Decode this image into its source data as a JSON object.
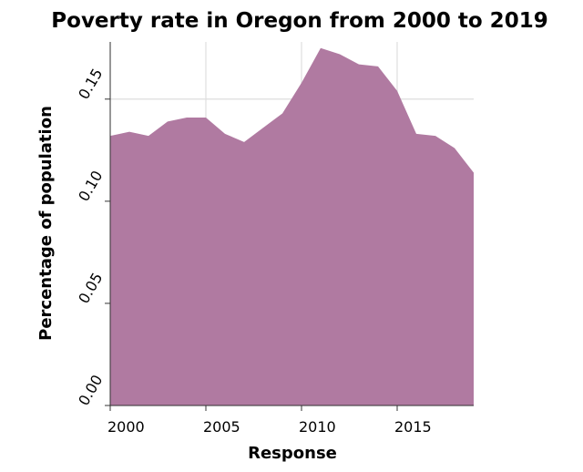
{
  "chart_data": {
    "type": "area",
    "title": "Poverty rate in Oregon from 2000 to 2019",
    "xlabel": "Response",
    "ylabel": "Percentage of population",
    "x": [
      2000,
      2001,
      2002,
      2003,
      2004,
      2005,
      2006,
      2007,
      2008,
      2009,
      2010,
      2011,
      2012,
      2013,
      2014,
      2015,
      2016,
      2017,
      2018,
      2019
    ],
    "series": [
      {
        "values": [
          0.132,
          0.134,
          0.132,
          0.139,
          0.141,
          0.141,
          0.133,
          0.129,
          0.136,
          0.143,
          0.158,
          0.175,
          0.172,
          0.167,
          0.166,
          0.154,
          0.133,
          0.132,
          0.126,
          0.114
        ],
        "color": "#b07aa1"
      }
    ],
    "xlim": [
      2000,
      2019
    ],
    "ylim": [
      0,
      0.178
    ],
    "xticks": [
      2000,
      2005,
      2010,
      2015
    ],
    "xtick_labels": [
      "2000",
      "2005",
      "2010",
      "2015"
    ],
    "yticks": [
      0,
      0.05,
      0.1,
      0.15
    ],
    "ytick_labels": [
      "0.00",
      "0.05",
      "0.10",
      "0.15"
    ],
    "grid": true
  }
}
